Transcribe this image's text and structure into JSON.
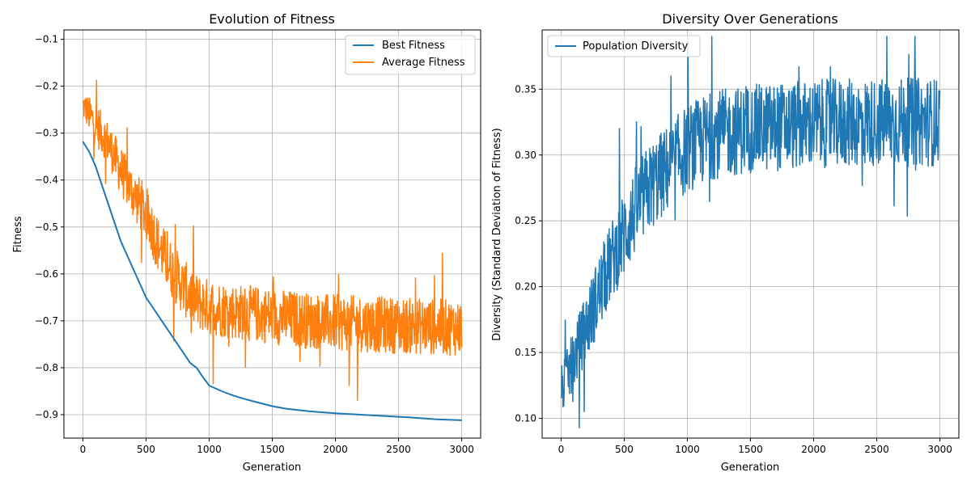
{
  "chart_data": [
    {
      "type": "line",
      "title": "Evolution of Fitness",
      "xlabel": "Generation",
      "ylabel": "Fitness",
      "xlim": [
        -150,
        3150
      ],
      "ylim": [
        -0.95,
        -0.08
      ],
      "xticks": [
        0,
        500,
        1000,
        1500,
        2000,
        2500,
        3000
      ],
      "yticks": [
        -0.9,
        -0.8,
        -0.7,
        -0.6,
        -0.5,
        -0.4,
        -0.3,
        -0.2,
        -0.1
      ],
      "grid": true,
      "legend": "top-right",
      "series": [
        {
          "name": "Best Fitness",
          "color": "#1f77b4",
          "x": [
            0,
            50,
            100,
            150,
            200,
            250,
            300,
            350,
            400,
            450,
            500,
            550,
            600,
            650,
            700,
            750,
            800,
            850,
            900,
            950,
            1000,
            1100,
            1200,
            1300,
            1400,
            1500,
            1600,
            1700,
            1800,
            1900,
            2000,
            2200,
            2400,
            2600,
            2800,
            3000
          ],
          "y": [
            -0.318,
            -0.34,
            -0.37,
            -0.41,
            -0.45,
            -0.49,
            -0.53,
            -0.56,
            -0.59,
            -0.62,
            -0.65,
            -0.67,
            -0.69,
            -0.71,
            -0.73,
            -0.75,
            -0.77,
            -0.79,
            -0.8,
            -0.82,
            -0.838,
            -0.85,
            -0.86,
            -0.868,
            -0.875,
            -0.882,
            -0.887,
            -0.89,
            -0.893,
            -0.895,
            -0.897,
            -0.9,
            -0.903,
            -0.906,
            -0.91,
            -0.912
          ]
        },
        {
          "name": "Average Fitness",
          "color": "#ff7f0e",
          "noise_band": [
            0.04,
            0.06,
            0.06,
            0.07,
            0.07,
            0.08,
            0.08,
            0.08,
            0.08,
            0.08,
            0.08,
            0.08,
            0.08,
            0.08,
            0.08,
            0.08,
            0.08
          ],
          "x": [
            0,
            100,
            200,
            300,
            400,
            500,
            600,
            700,
            800,
            900,
            1000,
            1200,
            1500,
            1800,
            2100,
            2500,
            3000
          ],
          "y": [
            -0.24,
            -0.28,
            -0.32,
            -0.38,
            -0.43,
            -0.47,
            -0.54,
            -0.59,
            -0.63,
            -0.66,
            -0.67,
            -0.68,
            -0.69,
            -0.7,
            -0.705,
            -0.71,
            -0.715
          ]
        }
      ]
    },
    {
      "type": "line",
      "title": "Diversity Over Generations",
      "xlabel": "Generation",
      "ylabel": "Diversity (Standard Deviation of Fitness)",
      "xlim": [
        -150,
        3150
      ],
      "ylim": [
        0.085,
        0.395
      ],
      "xticks": [
        0,
        500,
        1000,
        1500,
        2000,
        2500,
        3000
      ],
      "yticks": [
        0.1,
        0.15,
        0.2,
        0.25,
        0.3,
        0.35
      ],
      "grid": true,
      "legend": "top-left",
      "series": [
        {
          "name": "Population Diversity",
          "color": "#1f77b4",
          "noise_band": [
            0.025,
            0.03,
            0.035,
            0.04,
            0.04,
            0.045,
            0.045,
            0.045,
            0.045,
            0.045,
            0.045,
            0.045,
            0.045,
            0.045,
            0.045,
            0.045,
            0.045
          ],
          "x": [
            0,
            100,
            200,
            300,
            400,
            500,
            600,
            700,
            800,
            900,
            1000,
            1200,
            1500,
            1800,
            2100,
            2500,
            3000
          ],
          "y": [
            0.12,
            0.145,
            0.17,
            0.195,
            0.22,
            0.24,
            0.26,
            0.275,
            0.285,
            0.295,
            0.305,
            0.315,
            0.32,
            0.322,
            0.324,
            0.325,
            0.325
          ]
        }
      ]
    }
  ]
}
